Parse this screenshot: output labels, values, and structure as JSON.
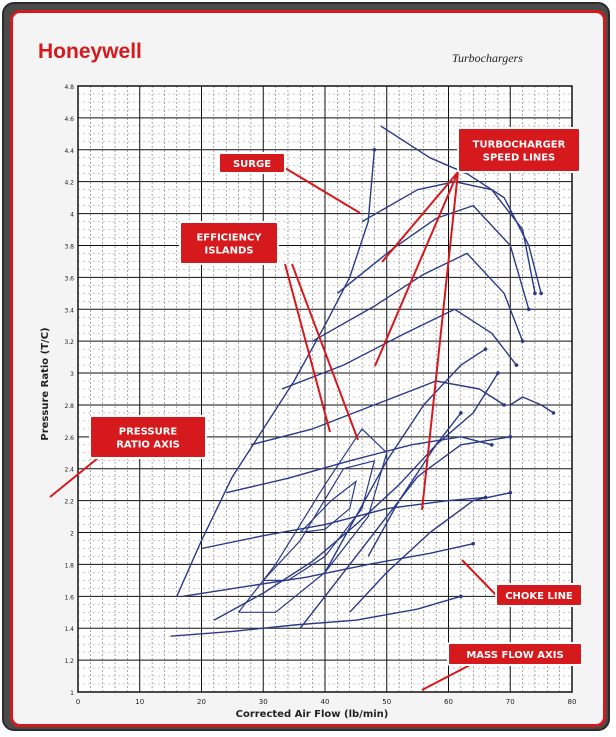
{
  "brand": "Honeywell",
  "subtitle": "Turbochargers",
  "colors": {
    "brand_red": "#d6191c",
    "curve_blue": "#2a3a8a",
    "frame_gray": "#4a4a4a"
  },
  "chart_data": {
    "type": "line",
    "title": "",
    "xlabel": "Corrected Air Flow (lb/min)",
    "ylabel": "Pressure Ratio (T/C)",
    "xlim": [
      0,
      80
    ],
    "ylim": [
      1.0,
      4.8
    ],
    "xticks": [
      "0",
      "10",
      "20",
      "30",
      "40",
      "50",
      "60",
      "70",
      "80"
    ],
    "yticks": [
      "1",
      "1.2",
      "1.4",
      "1.6",
      "1.8",
      "2",
      "2.2",
      "2.4",
      "2.6",
      "2.8",
      "3",
      "3.2",
      "3.4",
      "3.6",
      "3.8",
      "4",
      "4.2",
      "4.4",
      "4.6",
      "4.8"
    ],
    "grid": true,
    "series": [
      {
        "values": [
          [
            16,
            1.6
          ],
          [
            20,
            1.95
          ],
          [
            25,
            2.35
          ],
          [
            30,
            2.65
          ],
          [
            35,
            2.95
          ],
          [
            40,
            3.3
          ],
          [
            44,
            3.6
          ],
          [
            47,
            3.95
          ],
          [
            48,
            4.4
          ]
        ]
      },
      {
        "values": [
          [
            15,
            1.35
          ],
          [
            25,
            1.38
          ],
          [
            35,
            1.42
          ],
          [
            45,
            1.45
          ],
          [
            55,
            1.52
          ],
          [
            62,
            1.6
          ]
        ]
      },
      {
        "values": [
          [
            17,
            1.6
          ],
          [
            27,
            1.66
          ],
          [
            37,
            1.72
          ],
          [
            47,
            1.8
          ],
          [
            57,
            1.87
          ],
          [
            64,
            1.93
          ]
        ]
      },
      {
        "values": [
          [
            20,
            1.9
          ],
          [
            30,
            1.98
          ],
          [
            40,
            2.05
          ],
          [
            50,
            2.15
          ],
          [
            60,
            2.2
          ],
          [
            66,
            2.22
          ]
        ]
      },
      {
        "values": [
          [
            24,
            2.25
          ],
          [
            34,
            2.34
          ],
          [
            44,
            2.45
          ],
          [
            54,
            2.55
          ],
          [
            62,
            2.6
          ],
          [
            67,
            2.55
          ]
        ]
      },
      {
        "values": [
          [
            28,
            2.55
          ],
          [
            38,
            2.65
          ],
          [
            48,
            2.8
          ],
          [
            58,
            2.95
          ],
          [
            65,
            2.9
          ],
          [
            69,
            2.8
          ]
        ]
      },
      {
        "values": [
          [
            33,
            2.9
          ],
          [
            43,
            3.05
          ],
          [
            53,
            3.25
          ],
          [
            61,
            3.4
          ],
          [
            67,
            3.25
          ],
          [
            71,
            3.05
          ]
        ]
      },
      {
        "values": [
          [
            38,
            3.2
          ],
          [
            48,
            3.42
          ],
          [
            56,
            3.62
          ],
          [
            63,
            3.75
          ],
          [
            69,
            3.5
          ],
          [
            72,
            3.2
          ]
        ]
      },
      {
        "values": [
          [
            42,
            3.5
          ],
          [
            51,
            3.78
          ],
          [
            58,
            3.97
          ],
          [
            64,
            4.05
          ],
          [
            70,
            3.8
          ],
          [
            73,
            3.4
          ]
        ]
      },
      {
        "values": [
          [
            46,
            3.95
          ],
          [
            55,
            4.15
          ],
          [
            61,
            4.2
          ],
          [
            67,
            4.15
          ],
          [
            72,
            3.9
          ],
          [
            74,
            3.5
          ]
        ]
      },
      {
        "values": [
          [
            49,
            4.55
          ],
          [
            57,
            4.35
          ],
          [
            63,
            4.25
          ],
          [
            69,
            4.1
          ],
          [
            73,
            3.8
          ],
          [
            75,
            3.5
          ]
        ]
      },
      {
        "values": [
          [
            36,
            1.4
          ],
          [
            42,
            1.7
          ],
          [
            49,
            2.05
          ],
          [
            55,
            2.35
          ],
          [
            62,
            2.55
          ],
          [
            70,
            2.6
          ]
        ]
      },
      {
        "values": [
          [
            44,
            1.5
          ],
          [
            50,
            1.75
          ],
          [
            57,
            2.0
          ],
          [
            64,
            2.2
          ],
          [
            70,
            2.25
          ]
        ]
      },
      {
        "values": [
          [
            22,
            1.45
          ],
          [
            30,
            1.62
          ],
          [
            38,
            1.82
          ],
          [
            45,
            2.05
          ],
          [
            52,
            2.3
          ],
          [
            58,
            2.55
          ],
          [
            64,
            2.75
          ],
          [
            68,
            3.0
          ]
        ]
      },
      {
        "values": [
          [
            40,
            1.75
          ],
          [
            45,
            2.1
          ],
          [
            50,
            2.45
          ],
          [
            56,
            2.8
          ],
          [
            62,
            3.05
          ],
          [
            66,
            3.15
          ]
        ]
      },
      {
        "values": [
          [
            47,
            1.85
          ],
          [
            52,
            2.2
          ],
          [
            58,
            2.55
          ],
          [
            62,
            2.75
          ]
        ]
      },
      {
        "values": [
          [
            70,
            2.8
          ],
          [
            72,
            2.85
          ],
          [
            75,
            2.8
          ],
          [
            77,
            2.75
          ]
        ]
      }
    ],
    "islands": [
      {
        "values": [
          [
            26,
            1.5
          ],
          [
            32,
            1.8
          ],
          [
            40,
            2.3
          ],
          [
            46,
            2.65
          ],
          [
            50,
            2.5
          ],
          [
            47,
            2.1
          ],
          [
            40,
            1.75
          ],
          [
            32,
            1.5
          ],
          [
            26,
            1.5
          ]
        ]
      },
      {
        "values": [
          [
            30,
            1.7
          ],
          [
            36,
            1.95
          ],
          [
            43,
            2.4
          ],
          [
            48,
            2.45
          ],
          [
            46,
            2.15
          ],
          [
            40,
            1.85
          ],
          [
            34,
            1.7
          ],
          [
            30,
            1.7
          ]
        ]
      },
      {
        "values": [
          [
            36,
            2.0
          ],
          [
            41,
            2.2
          ],
          [
            45,
            2.32
          ],
          [
            44,
            2.15
          ],
          [
            40,
            2.02
          ],
          [
            36,
            2.0
          ]
        ]
      }
    ]
  },
  "callouts": [
    {
      "id": "surge",
      "lines": [
        "SURGE"
      ]
    },
    {
      "id": "efficiency",
      "lines": [
        "EFFICIENCY",
        "ISLANDS"
      ]
    },
    {
      "id": "speed",
      "lines": [
        "TURBOCHARGER",
        "SPEED LINES"
      ]
    },
    {
      "id": "pressure",
      "lines": [
        "PRESSURE",
        "RATIO AXIS"
      ]
    },
    {
      "id": "choke",
      "lines": [
        "CHOKE LINE"
      ]
    },
    {
      "id": "massflow",
      "lines": [
        "MASS FLOW AXIS"
      ]
    }
  ]
}
